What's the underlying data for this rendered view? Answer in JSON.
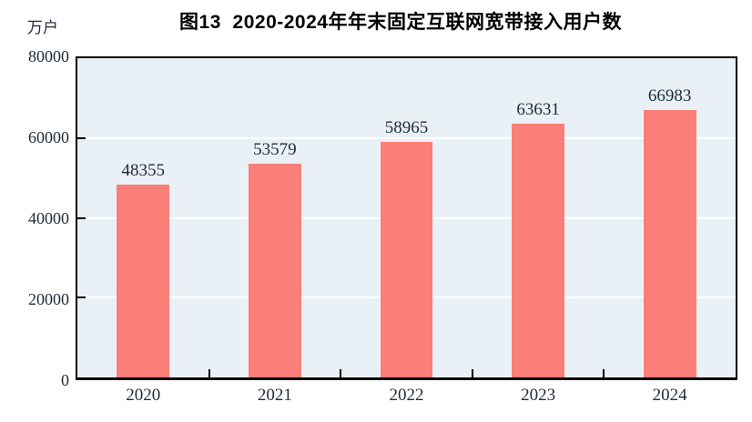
{
  "chart_data": {
    "type": "bar",
    "title": "图13  2020-2024年年末固定互联网宽带接入用户数",
    "categories": [
      "2020",
      "2021",
      "2022",
      "2023",
      "2024"
    ],
    "values": [
      48355,
      53579,
      58965,
      63631,
      66983
    ],
    "xlabel": "",
    "ylabel": "万户",
    "ylim": [
      0,
      80000
    ],
    "y_ticks": [
      0,
      20000,
      40000,
      60000,
      80000
    ],
    "grid": "horizontal-white-gridlines",
    "legend": "none",
    "bar_color": "#FA7F78",
    "plot_bg": "#EAF1F6",
    "plot_border_color": "#000000",
    "label_color": "#1e2a3a",
    "title_color": "#000000"
  }
}
